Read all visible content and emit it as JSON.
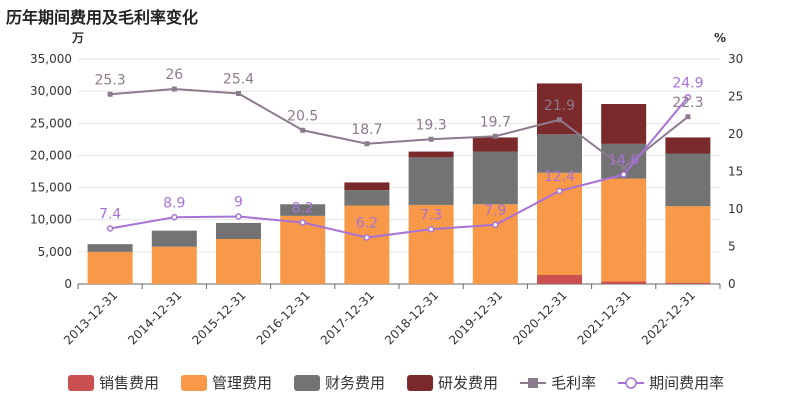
{
  "chart_data": {
    "type": "bar",
    "title": "历年期间费用及毛利率变化",
    "left_unit": "万",
    "right_unit": "%",
    "categories": [
      "2013-12-31",
      "2014-12-31",
      "2015-12-31",
      "2016-12-31",
      "2017-12-31",
      "2018-12-31",
      "2019-12-31",
      "2020-12-31",
      "2021-12-31",
      "2022-12-31"
    ],
    "left_axis": {
      "min": 0,
      "max": 35000,
      "step": 5000,
      "tick_labels": [
        "0",
        "5,000",
        "10,000",
        "15,000",
        "20,000",
        "25,000",
        "30,000",
        "35,000"
      ]
    },
    "right_axis": {
      "min": 0,
      "max": 30,
      "step": 5,
      "tick_labels": [
        "0",
        "5",
        "10",
        "15",
        "20",
        "25",
        "30"
      ]
    },
    "stacked": true,
    "series": [
      {
        "name": "销售费用",
        "type": "bar",
        "color": "#c9504f",
        "values": [
          0,
          0,
          0,
          0,
          0,
          0,
          0,
          1400,
          400,
          200
        ]
      },
      {
        "name": "管理费用",
        "type": "bar",
        "color": "#f8994a",
        "values": [
          5000,
          5800,
          7000,
          10600,
          12200,
          12300,
          12400,
          15900,
          16000,
          11900
        ]
      },
      {
        "name": "财务费用",
        "type": "bar",
        "color": "#737373",
        "values": [
          1200,
          2500,
          2500,
          1800,
          2400,
          7400,
          8200,
          6000,
          5400,
          8200
        ]
      },
      {
        "name": "研发费用",
        "type": "bar",
        "color": "#7b2a2b",
        "values": [
          0,
          0,
          0,
          0,
          1200,
          900,
          2200,
          7900,
          6200,
          2500
        ]
      },
      {
        "name": "毛利率",
        "type": "line",
        "axis": "right",
        "color": "#8c7b8c",
        "marker": "square",
        "values": [
          25.3,
          26,
          25.4,
          20.5,
          18.7,
          19.3,
          19.7,
          21.9,
          15.5,
          22.3
        ],
        "labels": [
          "25.3",
          "26",
          "25.4",
          "20.5",
          "18.7",
          "19.3",
          "19.7",
          "21.9",
          "",
          "22.3"
        ]
      },
      {
        "name": "期间费用率",
        "type": "line",
        "axis": "right",
        "color": "#a772d6",
        "marker": "circle",
        "values": [
          7.4,
          8.9,
          9,
          8.2,
          6.2,
          7.3,
          7.9,
          12.4,
          14.6,
          24.9
        ],
        "labels": [
          "7.4",
          "8.9",
          "9",
          "8.2",
          "6.2",
          "7.3",
          "7.9",
          "12.4",
          "14.6",
          "24.9"
        ]
      }
    ],
    "legend": {
      "position": "bottom"
    },
    "grid": {
      "horizontal": true
    }
  }
}
